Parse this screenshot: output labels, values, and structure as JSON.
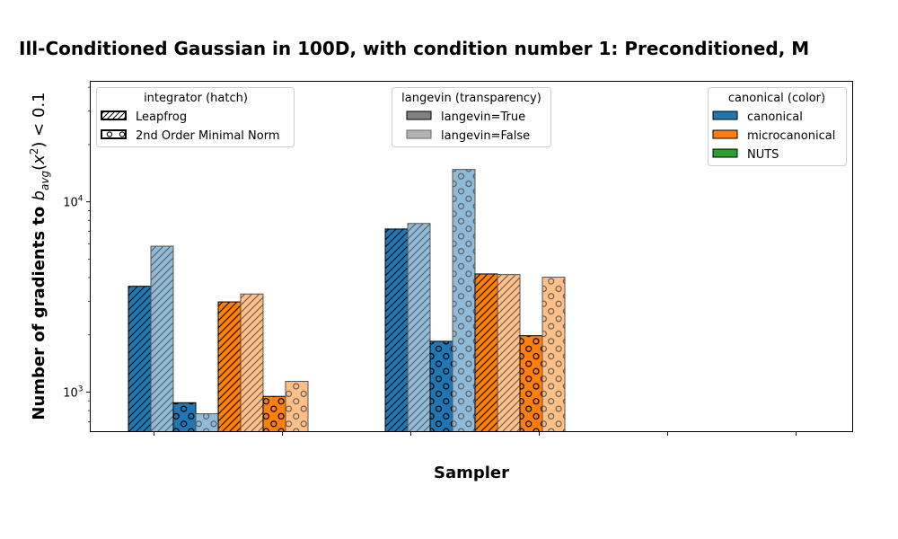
{
  "chart_data": {
    "type": "bar",
    "title": "Ill-Conditioned Gaussian in 100D, with condition number 1: Preconditioned, M",
    "xlabel": "Sampler",
    "ylabel": "Number of gradients to b_avg(x²) < 0.1",
    "ylabel_parts": {
      "main": "Number of gradients to ",
      "b": "b",
      "sub": "avg",
      "paren_open": "(",
      "x": "x",
      "sup": "2",
      "rest": ") < 0.1"
    },
    "yscale": "log",
    "ylim": [
      620,
      43000
    ],
    "yticks": [
      {
        "value": 1000,
        "base": "10",
        "exp": "3"
      },
      {
        "value": 10000,
        "base": "10",
        "exp": "4"
      }
    ],
    "x_tick_count": 6,
    "x_tick_labels": [],
    "groups": [
      {
        "bars": [
          {
            "canonical": "canonical",
            "integrator": "Leapfrog",
            "langevin": "langevin=True",
            "value": 3600
          },
          {
            "canonical": "canonical",
            "integrator": "Leapfrog",
            "langevin": "langevin=False",
            "value": 5850
          },
          {
            "canonical": "canonical",
            "integrator": "2nd Order Minimal Norm",
            "langevin": "langevin=True",
            "value": 880
          },
          {
            "canonical": "canonical",
            "integrator": "2nd Order Minimal Norm",
            "langevin": "langevin=False",
            "value": 770
          },
          {
            "canonical": "microcanonical",
            "integrator": "Leapfrog",
            "langevin": "langevin=True",
            "value": 2980
          },
          {
            "canonical": "microcanonical",
            "integrator": "Leapfrog",
            "langevin": "langevin=False",
            "value": 3280
          },
          {
            "canonical": "microcanonical",
            "integrator": "2nd Order Minimal Norm",
            "langevin": "langevin=True",
            "value": 950
          },
          {
            "canonical": "microcanonical",
            "integrator": "2nd Order Minimal Norm",
            "langevin": "langevin=False",
            "value": 1140
          }
        ]
      },
      {
        "bars": [
          {
            "canonical": "canonical",
            "integrator": "Leapfrog",
            "langevin": "langevin=True",
            "value": 7200
          },
          {
            "canonical": "canonical",
            "integrator": "Leapfrog",
            "langevin": "langevin=False",
            "value": 7700
          },
          {
            "canonical": "canonical",
            "integrator": "2nd Order Minimal Norm",
            "langevin": "langevin=True",
            "value": 1850
          },
          {
            "canonical": "canonical",
            "integrator": "2nd Order Minimal Norm",
            "langevin": "langevin=False",
            "value": 14800
          },
          {
            "canonical": "microcanonical",
            "integrator": "Leapfrog",
            "langevin": "langevin=True",
            "value": 4180
          },
          {
            "canonical": "microcanonical",
            "integrator": "Leapfrog",
            "langevin": "langevin=False",
            "value": 4150
          },
          {
            "canonical": "microcanonical",
            "integrator": "2nd Order Minimal Norm",
            "langevin": "langevin=True",
            "value": 1980
          },
          {
            "canonical": "microcanonical",
            "integrator": "2nd Order Minimal Norm",
            "langevin": "langevin=False",
            "value": 4020
          }
        ]
      }
    ],
    "legends": [
      {
        "title": "integrator (hatch)",
        "placement": "top-left",
        "entries": [
          {
            "label": "Leapfrog",
            "swatch": "hatch-line"
          },
          {
            "label": "2nd Order Minimal Norm",
            "swatch": "hatch-circle"
          }
        ]
      },
      {
        "title": "langevin (transparency)",
        "placement": "top-center",
        "entries": [
          {
            "label": "langevin=True",
            "swatch": "opaque"
          },
          {
            "label": "langevin=False",
            "swatch": "transparent"
          }
        ]
      },
      {
        "title": "canonical (color)",
        "placement": "top-right",
        "entries": [
          {
            "label": "canonical",
            "swatch": "canonical"
          },
          {
            "label": "microcanonical",
            "swatch": "microcanonical"
          },
          {
            "label": "NUTS",
            "swatch": "NUTS"
          }
        ]
      }
    ],
    "colors": {
      "canonical": "#1f77b4",
      "microcanonical": "#ff7f0e",
      "NUTS": "#2ca02c"
    },
    "grid": false
  }
}
